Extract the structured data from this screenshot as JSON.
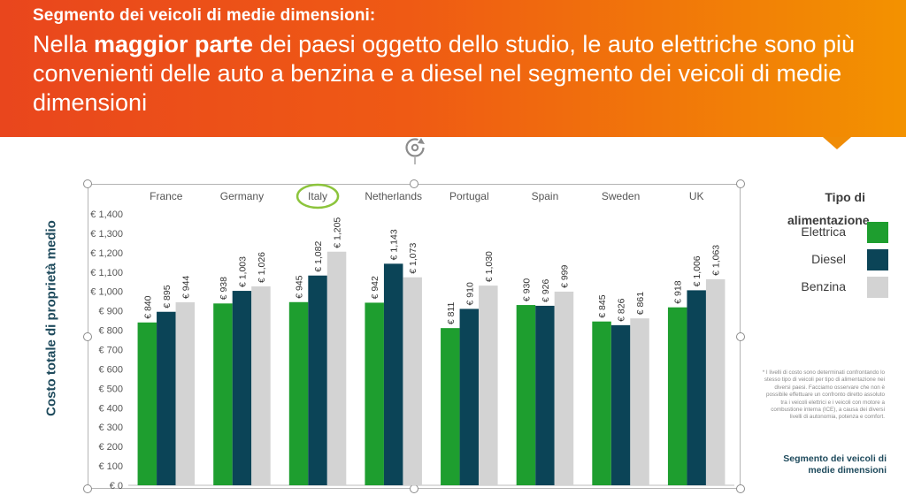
{
  "header": {
    "subtitle": "Segmento dei veicoli di medie dimensioni:",
    "headline_before": "Nella ",
    "headline_bold": "maggior parte",
    "headline_after": " dei paesi oggetto dello studio, le auto elettriche sono più convenienti delle auto a benzina e a diesel nel segmento dei veicoli di medie dimensioni"
  },
  "colors": {
    "elettrica": "#1e9e2f",
    "diesel": "#0b4457",
    "benzina": "#d3d3d3",
    "highlight_circle": "#8cc43c",
    "accent_text": "#1e4a5c"
  },
  "legend": {
    "title": "Tipo di alimentazione",
    "items": [
      "Elettrica",
      "Diesel",
      "Benzina"
    ]
  },
  "footnote": "* I livelli di costo sono determinati confrontando lo stesso tipo di veicoli per tipo di alimentazione nei diversi paesi. Facciamo osservare che non è possibile effettuare un confronto diretto assoluto tra i veicoli elettrici e i veicoli con motore a combustione interna (ICE), a causa dei diversi livelli di autonomia, potenza e comfort.",
  "footer_label": "Segmento dei veicoli di medie dimensioni",
  "chart_data": {
    "type": "bar",
    "ylabel": "Costo totale di proprietà medio",
    "categories": [
      "France",
      "Germany",
      "Italy",
      "Netherlands",
      "Portugal",
      "Spain",
      "Sweden",
      "UK"
    ],
    "highlighted_category": "Italy",
    "ylim": [
      0,
      1400
    ],
    "yticks": [
      0,
      100,
      200,
      300,
      400,
      500,
      600,
      700,
      800,
      900,
      1000,
      1100,
      1200,
      1300,
      1400
    ],
    "ytick_labels": [
      "€ 0",
      "€ 100",
      "€ 200",
      "€ 300",
      "€ 400",
      "€ 500",
      "€ 600",
      "€ 700",
      "€ 800",
      "€ 900",
      "€ 1,000",
      "€ 1,100",
      "€ 1,200",
      "€ 1,300",
      "€ 1,400"
    ],
    "grid": false,
    "legend_position": "right",
    "series": [
      {
        "name": "Elettrica",
        "values": [
          840,
          938,
          945,
          942,
          811,
          930,
          845,
          918
        ],
        "labels": [
          "€ 840",
          "€ 938",
          "€ 945",
          "€ 942",
          "€ 811",
          "€ 930",
          "€ 845",
          "€ 918"
        ]
      },
      {
        "name": "Diesel",
        "values": [
          895,
          1003,
          1082,
          1143,
          910,
          926,
          826,
          1006
        ],
        "labels": [
          "€ 895",
          "€ 1,003",
          "€ 1,082",
          "€ 1,143",
          "€ 910",
          "€ 926",
          "€ 826",
          "€ 1,006"
        ]
      },
      {
        "name": "Benzina",
        "values": [
          944,
          1026,
          1205,
          1073,
          1030,
          999,
          861,
          1063
        ],
        "labels": [
          "€ 944",
          "€ 1,026",
          "€ 1,205",
          "€ 1,073",
          "€ 1,030",
          "€ 999",
          "€ 861",
          "€ 1,063"
        ]
      }
    ]
  }
}
